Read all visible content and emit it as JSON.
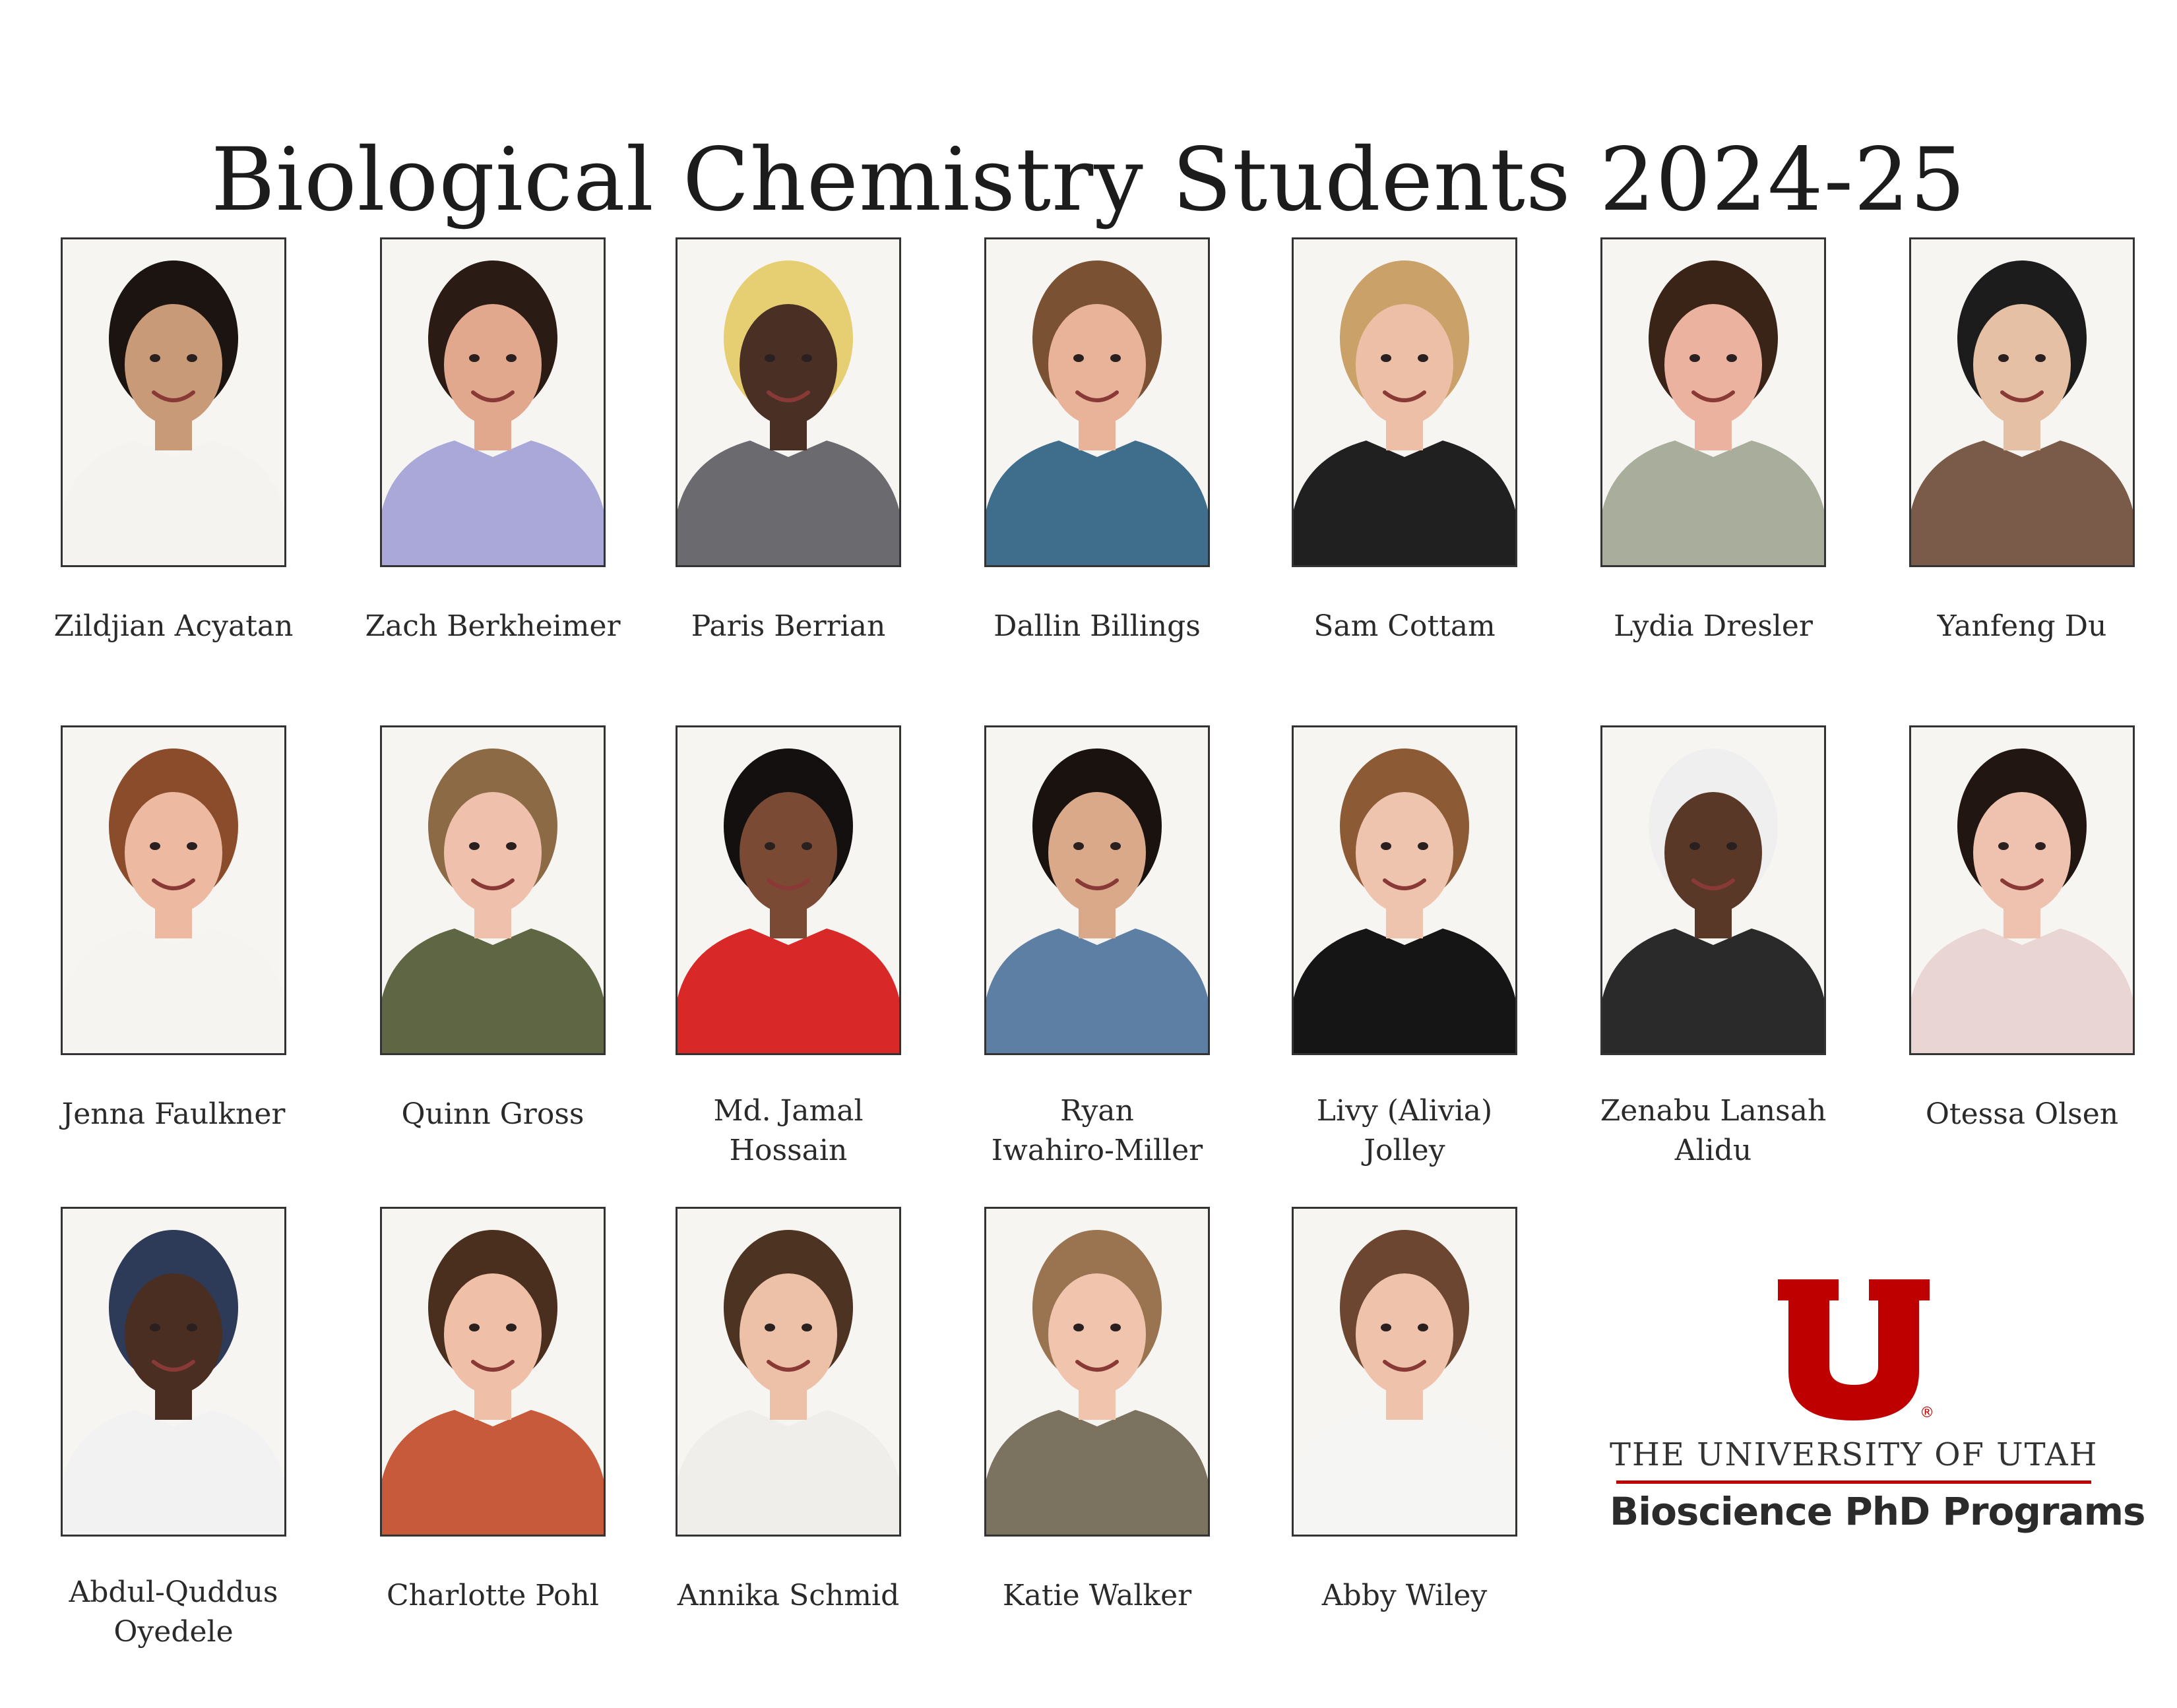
{
  "title": "Biological Chemistry Students 2024-25",
  "colors": {
    "brand_red": "#be0000",
    "text": "#222222",
    "frame": "#333333"
  },
  "students": [
    {
      "name_lines": [
        "Zildjian Acyatan"
      ],
      "hair": "#1b1411",
      "shirt": "#f5f3ef",
      "skin": "#c99a78"
    },
    {
      "name_lines": [
        "Zach Berkheimer"
      ],
      "hair": "#2a1c14",
      "shirt": "#a9a8d8",
      "skin": "#e2a88e"
    },
    {
      "name_lines": [
        "Paris Berrian"
      ],
      "hair": "#e6cf72",
      "shirt": "#6b6a6e",
      "skin": "#4a3024"
    },
    {
      "name_lines": [
        "Dallin Billings"
      ],
      "hair": "#7a5132",
      "shirt": "#3f6d8c",
      "skin": "#e9b39a"
    },
    {
      "name_lines": [
        "Sam Cottam"
      ],
      "hair": "#c9a169",
      "shirt": "#202020",
      "skin": "#edbfa6"
    },
    {
      "name_lines": [
        "Lydia Dresler"
      ],
      "hair": "#3a2418",
      "shirt": "#a8ad9c",
      "skin": "#ebb39f"
    },
    {
      "name_lines": [
        "Yanfeng Du"
      ],
      "hair": "#1c1c1c",
      "shirt": "#7a5a48",
      "skin": "#e6c0a4"
    },
    {
      "name_lines": [
        "Jenna Faulkner"
      ],
      "hair": "#8a4c2a",
      "shirt": "#f6f4f0",
      "skin": "#edb9a0"
    },
    {
      "name_lines": [
        "Quinn Gross"
      ],
      "hair": "#8c6a46",
      "shirt": "#5f6644",
      "skin": "#efc1ad"
    },
    {
      "name_lines": [
        "Md. Jamal",
        "Hossain"
      ],
      "hair": "#141010",
      "shirt": "#d82828",
      "skin": "#7a4a34"
    },
    {
      "name_lines": [
        "Ryan",
        "Iwahiro-Miller"
      ],
      "hair": "#1a120e",
      "shirt": "#5d7fa4",
      "skin": "#d9a98a"
    },
    {
      "name_lines": [
        "Livy (Alivia)",
        "Jolley"
      ],
      "hair": "#8d5a36",
      "shirt": "#151515",
      "skin": "#efc4ae"
    },
    {
      "name_lines": [
        "Zenabu Lansah",
        "Alidu"
      ],
      "hair": "#efefef",
      "shirt": "#2a2a2a",
      "skin": "#5a3828"
    },
    {
      "name_lines": [
        "Otessa Olsen"
      ],
      "hair": "#211612",
      "shirt": "#e9d6d4",
      "skin": "#eec2ae"
    },
    {
      "name_lines": [
        "Abdul-Quddus",
        "Oyedele"
      ],
      "hair": "#2d3a58",
      "shirt": "#f2f2f2",
      "skin": "#4a2e22"
    },
    {
      "name_lines": [
        "Charlotte Pohl"
      ],
      "hair": "#4a2e1e",
      "shirt": "#c65a3a",
      "skin": "#efbfa8"
    },
    {
      "name_lines": [
        "Annika Schmid"
      ],
      "hair": "#4c3322",
      "shirt": "#f0eeea",
      "skin": "#edc0a8"
    },
    {
      "name_lines": [
        "Katie Walker"
      ],
      "hair": "#9a7350",
      "shirt": "#7c7260",
      "skin": "#f0c4ad"
    },
    {
      "name_lines": [
        "Abby Wiley"
      ],
      "hair": "#6c4630",
      "shirt": "#f5f5f3",
      "skin": "#efc2ac"
    }
  ],
  "logo": {
    "icon": "university-of-utah-block-u-icon",
    "registered_mark": "®",
    "university": "THE UNIVERSITY OF UTAH",
    "programs": "Bioscience PhD Programs"
  }
}
